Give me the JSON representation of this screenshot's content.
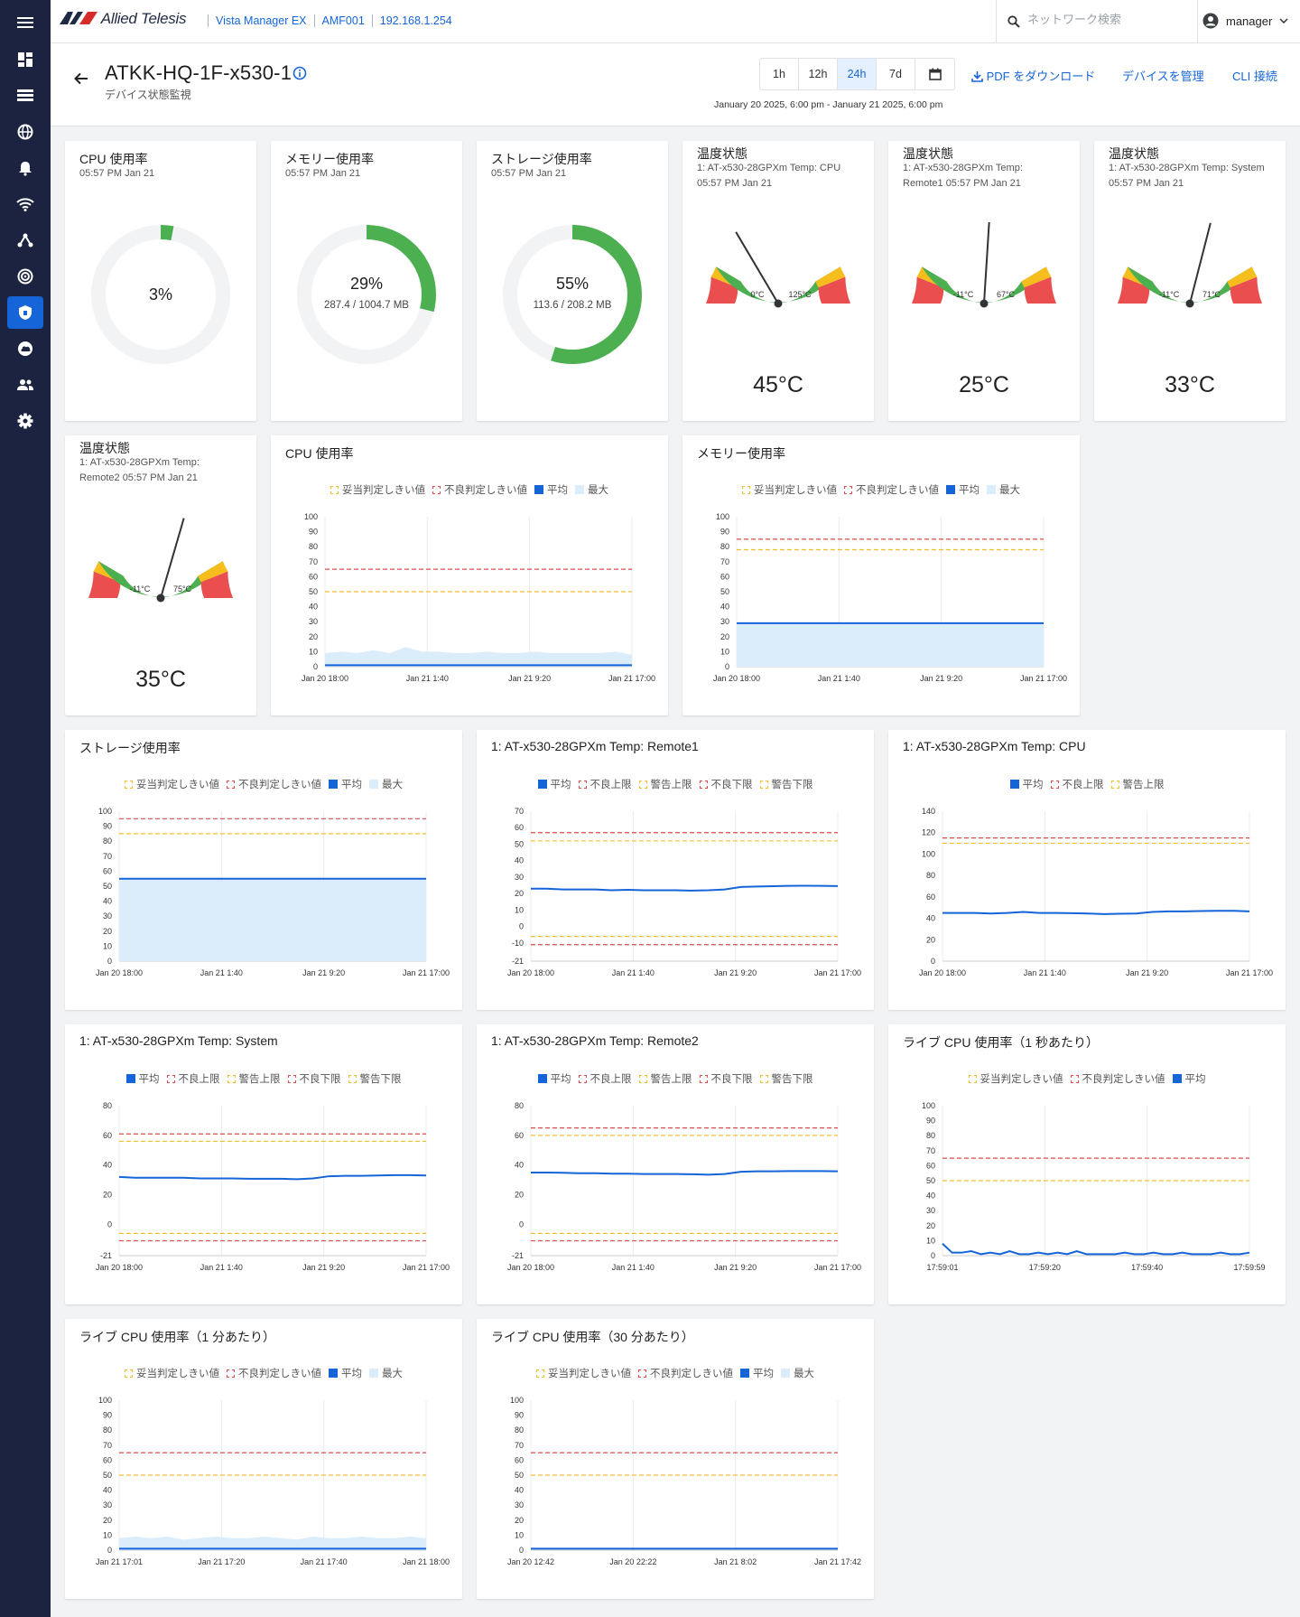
{
  "app": {
    "brand": "Allied Telesis",
    "product": "Vista Manager EX",
    "amf": "AMF001",
    "ip": "192.168.1.254"
  },
  "search": {
    "placeholder": "ネットワーク検索"
  },
  "user": {
    "name": "manager"
  },
  "sidebar": {
    "items": [
      "menu-icon",
      "dashboard-icon",
      "list-icon",
      "globe-icon",
      "alarm-icon",
      "wifi-icon",
      "topology-icon",
      "radar-icon",
      "security-icon",
      "cloud-icon",
      "users-icon",
      "settings-icon"
    ],
    "active": 8
  },
  "header": {
    "title": "ATKK-HQ-1F-x530-1",
    "subtitle": "デバイス状態監視",
    "ranges": [
      "1h",
      "12h",
      "24h",
      "7d"
    ],
    "selected_range": "24h",
    "date_range": "January 20 2025, 6:00 pm - January 21 2025, 6:00 pm",
    "pdf": "PDF をダウンロード",
    "manage": "デバイスを管理",
    "cli": "CLI 接続"
  },
  "legend_labels": {
    "ok": "妥当判定しきい値",
    "bad": "不良判定しきい値",
    "avg": "平均",
    "max": "最大",
    "fail_hi": "不良上限",
    "warn_hi": "警告上限",
    "fail_lo": "不良下限",
    "warn_lo": "警告下限"
  },
  "donuts": [
    {
      "title": "CPU 使用率",
      "time": "05:57 PM Jan 21",
      "pct": "3%",
      "detail": "",
      "fraction": 0.03
    },
    {
      "title": "メモリー使用率",
      "time": "05:57 PM Jan 21",
      "pct": "29%",
      "detail": "287.4 / 1004.7 MB",
      "fraction": 0.29
    },
    {
      "title": "ストレージ使用率",
      "time": "05:57 PM Jan 21",
      "pct": "55%",
      "detail": "113.6 / 208.2 MB",
      "fraction": 0.55
    }
  ],
  "gauges": [
    {
      "title": "温度状態",
      "sub1": "1: AT-x530-28GPXm Temp: CPU",
      "sub2": "05:57 PM Jan 21",
      "min": "0°C",
      "max": "125°C",
      "value": "45°C",
      "fraction": 0.33
    },
    {
      "title": "温度状態",
      "sub1": "1: AT-x530-28GPXm Temp:",
      "sub2": "Remote1 05:57 PM Jan 21",
      "min": "-11°C",
      "max": "67°C",
      "value": "25°C",
      "fraction": 0.52
    },
    {
      "title": "温度状態",
      "sub1": "1: AT-x530-28GPXm Temp: System",
      "sub2": "05:57 PM Jan 21",
      "min": "-11°C",
      "max": "71°C",
      "value": "33°C",
      "fraction": 0.58
    },
    {
      "title": "温度状態",
      "sub1": "1: AT-x530-28GPXm Temp:",
      "sub2": "Remote2 05:57 PM Jan 21",
      "min": "-11°C",
      "max": "75°C",
      "value": "35°C",
      "fraction": 0.59
    }
  ],
  "chart_data": [
    {
      "title": "CPU 使用率",
      "type": "area",
      "legend": [
        "ok",
        "bad",
        "avg",
        "max"
      ],
      "yticks": [
        0,
        10,
        20,
        30,
        40,
        50,
        60,
        70,
        80,
        90,
        100
      ],
      "ylim": [
        0,
        100
      ],
      "xticks": [
        "Jan 20 18:00",
        "Jan 21 1:40",
        "Jan 21 9:20",
        "Jan 21 17:00"
      ],
      "thresholds": [
        {
          "kind": "bad",
          "value": 65
        },
        {
          "kind": "ok",
          "value": 50
        }
      ],
      "avg": [
        1,
        1,
        1,
        1,
        1,
        1,
        1,
        1,
        1,
        1,
        1,
        1,
        1,
        1,
        1,
        1,
        1,
        1,
        1,
        1
      ],
      "max": [
        9,
        10,
        9,
        11,
        9,
        13,
        10,
        10,
        9,
        9,
        10,
        9,
        9,
        10,
        9,
        9,
        9,
        9,
        10,
        8
      ]
    },
    {
      "title": "メモリー使用率",
      "type": "area",
      "legend": [
        "ok",
        "bad",
        "avg",
        "max"
      ],
      "yticks": [
        0,
        10,
        20,
        30,
        40,
        50,
        60,
        70,
        80,
        90,
        100
      ],
      "ylim": [
        0,
        100
      ],
      "xticks": [
        "Jan 20 18:00",
        "Jan 21 1:40",
        "Jan 21 9:20",
        "Jan 21 17:00"
      ],
      "thresholds": [
        {
          "kind": "bad",
          "value": 85
        },
        {
          "kind": "ok",
          "value": 78
        }
      ],
      "avg": [
        29,
        29,
        29,
        29,
        29,
        29,
        29,
        29,
        29,
        29,
        29,
        29,
        29,
        29,
        29,
        29,
        29,
        29,
        29,
        29
      ],
      "max": [
        29,
        29,
        29,
        29,
        29,
        29,
        29,
        29,
        29,
        29,
        29,
        29,
        29,
        29,
        29,
        29,
        29,
        29,
        29,
        29
      ]
    },
    {
      "title": "ストレージ使用率",
      "type": "area",
      "legend": [
        "ok",
        "bad",
        "avg",
        "max"
      ],
      "yticks": [
        0,
        10,
        20,
        30,
        40,
        50,
        60,
        70,
        80,
        90,
        100
      ],
      "ylim": [
        0,
        100
      ],
      "xticks": [
        "Jan 20 18:00",
        "Jan 21 1:40",
        "Jan 21 9:20",
        "Jan 21 17:00"
      ],
      "thresholds": [
        {
          "kind": "bad",
          "value": 95
        },
        {
          "kind": "ok",
          "value": 85
        }
      ],
      "avg": [
        55,
        55,
        55,
        55,
        55,
        55,
        55,
        55,
        55,
        55,
        55,
        55,
        55,
        55,
        55,
        55,
        55,
        55,
        55,
        55
      ],
      "max": [
        55,
        55,
        55,
        55,
        55,
        55,
        55,
        55,
        55,
        55,
        55,
        55,
        55,
        55,
        55,
        55,
        55,
        55,
        55,
        55
      ]
    },
    {
      "title": "1: AT-x530-28GPXm Temp: Remote1",
      "type": "line",
      "legend": [
        "avg",
        "fail_hi",
        "warn_hi",
        "fail_lo",
        "warn_lo"
      ],
      "yticks": [
        -21,
        -10,
        0,
        10,
        20,
        30,
        40,
        50,
        60,
        70
      ],
      "ylim": [
        -21,
        70
      ],
      "xticks": [
        "Jan 20 18:00",
        "Jan 21 1:40",
        "Jan 21 9:20",
        "Jan 21 17:00"
      ],
      "thresholds": [
        {
          "kind": "bad",
          "value": 57
        },
        {
          "kind": "ok",
          "value": 52
        },
        {
          "kind": "ok",
          "value": -6
        },
        {
          "kind": "bad",
          "value": -11
        }
      ],
      "avg": [
        23,
        23,
        22.5,
        22.5,
        22.5,
        22,
        22.3,
        22,
        22,
        22,
        21.8,
        22,
        22.5,
        24,
        24.3,
        24.5,
        24.7,
        24.8,
        24.7,
        24.6
      ],
      "max": []
    },
    {
      "title": "1: AT-x530-28GPXm Temp: CPU",
      "type": "line",
      "legend": [
        "avg",
        "fail_hi",
        "warn_hi"
      ],
      "yticks": [
        0,
        20,
        40,
        60,
        80,
        100,
        120,
        140
      ],
      "ylim": [
        0,
        140
      ],
      "xticks": [
        "Jan 20 18:00",
        "Jan 21 1:40",
        "Jan 21 9:20",
        "Jan 21 17:00"
      ],
      "thresholds": [
        {
          "kind": "bad",
          "value": 115
        },
        {
          "kind": "ok",
          "value": 110
        }
      ],
      "avg": [
        45,
        45,
        45,
        44.5,
        45,
        46,
        45,
        45,
        44.8,
        44.5,
        44,
        44.3,
        44.5,
        46,
        46.5,
        46.5,
        46.8,
        47,
        47,
        46.5
      ],
      "max": []
    },
    {
      "title": "1: AT-x530-28GPXm Temp: System",
      "type": "line",
      "legend": [
        "avg",
        "fail_hi",
        "warn_hi",
        "fail_lo",
        "warn_lo"
      ],
      "yticks": [
        -21,
        0,
        20,
        40,
        60,
        80
      ],
      "ylim": [
        -21,
        80
      ],
      "xticks": [
        "Jan 20 18:00",
        "Jan 21 1:40",
        "Jan 21 9:20",
        "Jan 21 17:00"
      ],
      "thresholds": [
        {
          "kind": "bad",
          "value": 61
        },
        {
          "kind": "ok",
          "value": 56
        },
        {
          "kind": "ok",
          "value": -6
        },
        {
          "kind": "bad",
          "value": -11
        }
      ],
      "avg": [
        32,
        31.5,
        31.5,
        31.5,
        31.5,
        31,
        31,
        31,
        30.8,
        30.8,
        30.8,
        30.5,
        31,
        32.5,
        32.8,
        32.8,
        33,
        33.2,
        33.2,
        33
      ],
      "max": []
    },
    {
      "title": "1: AT-x530-28GPXm Temp: Remote2",
      "type": "line",
      "legend": [
        "avg",
        "fail_hi",
        "warn_hi",
        "fail_lo",
        "warn_lo"
      ],
      "yticks": [
        -21,
        0,
        20,
        40,
        60,
        80
      ],
      "ylim": [
        -21,
        80
      ],
      "xticks": [
        "Jan 20 18:00",
        "Jan 21 1:40",
        "Jan 21 9:20",
        "Jan 21 17:00"
      ],
      "thresholds": [
        {
          "kind": "bad",
          "value": 65
        },
        {
          "kind": "ok",
          "value": 60
        },
        {
          "kind": "ok",
          "value": -6
        },
        {
          "kind": "bad",
          "value": -11
        }
      ],
      "avg": [
        35,
        35,
        34.8,
        34.5,
        34.5,
        34.2,
        34.2,
        34,
        34,
        34,
        33.8,
        33.5,
        34,
        35.5,
        35.8,
        35.8,
        36,
        36,
        36,
        35.8
      ],
      "max": []
    },
    {
      "title": "ライブ CPU 使用率（1 秒あたり）",
      "type": "line",
      "legend": [
        "ok",
        "bad",
        "avg"
      ],
      "yticks": [
        0,
        10,
        20,
        30,
        40,
        50,
        60,
        70,
        80,
        90,
        100
      ],
      "ylim": [
        0,
        100
      ],
      "xticks": [
        "17:59:01",
        "17:59:20",
        "17:59:40",
        "17:59:59"
      ],
      "thresholds": [
        {
          "kind": "bad",
          "value": 65
        },
        {
          "kind": "ok",
          "value": 50
        }
      ],
      "avg": [
        8,
        2,
        2,
        3,
        1,
        2,
        1,
        3,
        1,
        1,
        2,
        1,
        2,
        1,
        3,
        1,
        1,
        1,
        1,
        2,
        1,
        1,
        2,
        1,
        1,
        2,
        1,
        1,
        1,
        2,
        1,
        1,
        2
      ],
      "max": []
    },
    {
      "title": "ライブ CPU 使用率（1 分あたり）",
      "type": "area",
      "legend": [
        "ok",
        "bad",
        "avg",
        "max"
      ],
      "yticks": [
        0,
        10,
        20,
        30,
        40,
        50,
        60,
        70,
        80,
        90,
        100
      ],
      "ylim": [
        0,
        100
      ],
      "xticks": [
        "Jan 21 17:01",
        "Jan 21 17:20",
        "Jan 21 17:40",
        "Jan 21 18:00"
      ],
      "thresholds": [
        {
          "kind": "bad",
          "value": 65
        },
        {
          "kind": "ok",
          "value": 50
        }
      ],
      "avg": [
        1,
        1,
        1,
        1,
        1,
        1,
        1,
        1,
        1,
        1,
        1,
        1,
        1,
        1,
        1,
        1,
        1,
        1,
        1,
        1
      ],
      "max": [
        8,
        9,
        8,
        9,
        7,
        8,
        9,
        8,
        8,
        9,
        8,
        7,
        9,
        8,
        8,
        9,
        8,
        8,
        9,
        8
      ]
    },
    {
      "title": "ライブ CPU 使用率（30 分あたり）",
      "type": "line",
      "legend": [
        "ok",
        "bad",
        "avg",
        "max"
      ],
      "yticks": [
        0,
        10,
        20,
        30,
        40,
        50,
        60,
        70,
        80,
        90,
        100
      ],
      "ylim": [
        0,
        100
      ],
      "xticks": [
        "Jan 20 12:42",
        "Jan 20 22:22",
        "Jan 21 8:02",
        "Jan 21 17:42"
      ],
      "thresholds": [
        {
          "kind": "bad",
          "value": 65
        },
        {
          "kind": "ok",
          "value": 50
        }
      ],
      "avg": [
        1,
        1,
        1,
        1,
        1,
        1,
        1,
        1,
        1,
        1,
        1,
        1,
        1,
        1,
        1,
        1,
        1,
        1,
        1,
        1
      ],
      "max": []
    }
  ]
}
